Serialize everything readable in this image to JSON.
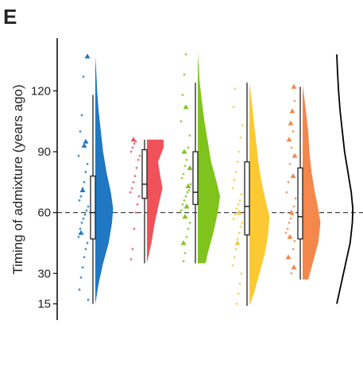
{
  "panel_label": "E",
  "chart_data": {
    "type": "raincloud",
    "ylabel": "Timing of admixture (years ago)",
    "ylim": [
      7,
      146
    ],
    "yticks": [
      15,
      30,
      60,
      90,
      120
    ],
    "hline": 60,
    "series": [
      {
        "color": "#1f78c1",
        "box": [
          15,
          47,
          60,
          78,
          118
        ],
        "violin_y": [
          15,
          25,
          35,
          45,
          55,
          62,
          70,
          80,
          90,
          100,
          110,
          120,
          130,
          137
        ],
        "violin_w": [
          0,
          0.15,
          0.35,
          0.6,
          0.75,
          0.8,
          0.7,
          0.5,
          0.35,
          0.25,
          0.15,
          0.08,
          0.04,
          0
        ],
        "points": [
          17,
          22,
          28,
          33,
          38,
          42,
          45,
          48,
          52,
          55,
          57,
          59,
          61,
          63,
          66,
          68,
          72,
          75,
          80,
          84,
          88,
          100,
          108,
          127
        ],
        "triangles": [
          137,
          95,
          93,
          71,
          50
        ]
      },
      {
        "color": "#f0525a",
        "box": [
          35,
          67,
          74,
          91,
          96
        ],
        "violin_y": [
          35,
          45,
          55,
          65,
          72,
          78,
          85,
          92,
          96
        ],
        "violin_w": [
          0,
          0.2,
          0.35,
          0.55,
          0.7,
          0.6,
          0.5,
          0.75,
          0.75
        ],
        "points": [
          37,
          42,
          52,
          60,
          64,
          68,
          70,
          72,
          75,
          78,
          82,
          86,
          88,
          90,
          92,
          94,
          95
        ],
        "triangles": [
          96
        ]
      },
      {
        "color": "#7fc31c",
        "box": [
          35,
          64,
          70,
          90,
          124
        ],
        "violin_y": [
          35,
          40,
          50,
          60,
          68,
          75,
          85,
          95,
          105,
          115,
          125,
          139
        ],
        "violin_w": [
          0.35,
          0.45,
          0.7,
          0.9,
          1,
          0.85,
          0.6,
          0.45,
          0.3,
          0.18,
          0.08,
          0
        ],
        "points": [
          36,
          40,
          48,
          52,
          55,
          61,
          64,
          66,
          68,
          70,
          71,
          74,
          77,
          79,
          83,
          86,
          92,
          98,
          105,
          118,
          128,
          138
        ],
        "triangles": [
          112,
          90,
          82,
          73,
          63,
          58,
          45
        ]
      },
      {
        "color": "#fcc932",
        "box": [
          14,
          49,
          63,
          85,
          124
        ],
        "violin_y": [
          14,
          20,
          30,
          40,
          50,
          58,
          65,
          75,
          85,
          95,
          105,
          115,
          124
        ],
        "violin_w": [
          0,
          0.2,
          0.45,
          0.7,
          0.85,
          0.9,
          0.75,
          0.55,
          0.4,
          0.3,
          0.2,
          0.1,
          0
        ],
        "points": [
          15,
          20,
          25,
          30,
          34,
          38,
          42,
          47,
          50,
          53,
          55,
          57,
          59,
          62,
          64,
          66,
          69,
          72,
          76,
          80,
          85,
          90,
          97,
          103,
          112,
          121
        ],
        "triangles": [
          60,
          45
        ]
      },
      {
        "color": "#f4874b",
        "box": [
          27,
          47,
          58,
          82,
          122
        ],
        "violin_y": [
          27,
          35,
          45,
          55,
          62,
          70,
          80,
          90,
          100,
          110,
          123
        ],
        "violin_w": [
          0.25,
          0.45,
          0.7,
          0.8,
          0.7,
          0.55,
          0.4,
          0.3,
          0.25,
          0.15,
          0
        ],
        "points": [
          30,
          42,
          46,
          50,
          52,
          55,
          57,
          59,
          63,
          67,
          70,
          75,
          84,
          92,
          100,
          115
        ],
        "triangles": [
          122,
          110,
          104,
          96,
          88,
          78,
          60,
          48,
          38,
          33
        ]
      },
      {
        "color": "#000000",
        "outline": true,
        "violin_y": [
          15,
          25,
          35,
          45,
          55,
          62,
          70,
          80,
          90,
          100,
          110,
          120,
          130,
          138
        ],
        "violin_w": [
          0,
          0.2,
          0.4,
          0.6,
          0.7,
          0.72,
          0.65,
          0.5,
          0.35,
          0.25,
          0.15,
          0.08,
          0.03,
          0
        ]
      }
    ]
  }
}
